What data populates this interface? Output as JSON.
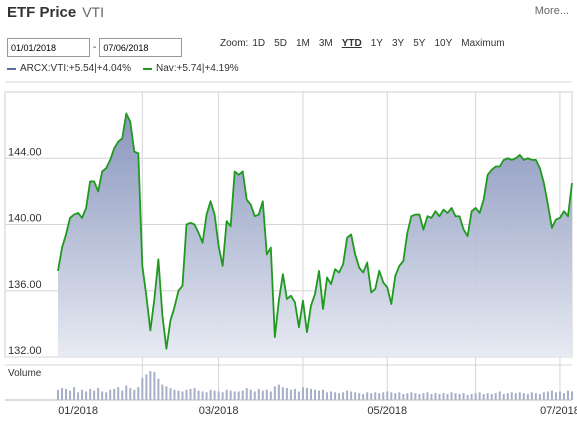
{
  "header": {
    "title": "ETF Price",
    "ticker": "VTI",
    "more_label": "More..."
  },
  "date_range": {
    "from": "01/01/2018",
    "to": "07/06/2018"
  },
  "zoom": {
    "label": "Zoom:",
    "options": [
      "1D",
      "5D",
      "1M",
      "3M",
      "YTD",
      "1Y",
      "3Y",
      "5Y",
      "10Y",
      "Maximum"
    ],
    "active": "YTD"
  },
  "legend": [
    {
      "name": "ARCX:VTI",
      "change": "+5.54",
      "pct": "+4.04%",
      "color": "#5a6fa0"
    },
    {
      "name": "Nav",
      "change": "+5.74",
      "pct": "+4.19%",
      "color": "#1f9a1f"
    }
  ],
  "chart_data": {
    "type": "area",
    "xlabel": "",
    "ylabel": "",
    "ylim": [
      132,
      148
    ],
    "yticks": [
      "132.00",
      "136.00",
      "140.00",
      "144.00"
    ],
    "xticks": [
      "01/2018",
      "03/2018",
      "05/2018",
      "07/2018"
    ],
    "volume_label": "Volume",
    "series": [
      {
        "name": "Nav",
        "x": [
          "2018-01-02",
          "2018-01-03",
          "2018-01-04",
          "2018-01-05",
          "2018-01-08",
          "2018-01-09",
          "2018-01-10",
          "2018-01-11",
          "2018-01-12",
          "2018-01-16",
          "2018-01-17",
          "2018-01-18",
          "2018-01-19",
          "2018-01-22",
          "2018-01-23",
          "2018-01-24",
          "2018-01-25",
          "2018-01-26",
          "2018-01-29",
          "2018-01-30",
          "2018-01-31",
          "2018-02-01",
          "2018-02-02",
          "2018-02-05",
          "2018-02-06",
          "2018-02-07",
          "2018-02-08",
          "2018-02-09",
          "2018-02-12",
          "2018-02-13",
          "2018-02-14",
          "2018-02-15",
          "2018-02-16",
          "2018-02-20",
          "2018-02-21",
          "2018-02-22",
          "2018-02-23",
          "2018-02-26",
          "2018-02-27",
          "2018-02-28",
          "2018-03-01",
          "2018-03-02",
          "2018-03-05",
          "2018-03-06",
          "2018-03-07",
          "2018-03-08",
          "2018-03-09",
          "2018-03-12",
          "2018-03-13",
          "2018-03-14",
          "2018-03-15",
          "2018-03-16",
          "2018-03-19",
          "2018-03-20",
          "2018-03-21",
          "2018-03-22",
          "2018-03-23",
          "2018-03-26",
          "2018-03-27",
          "2018-03-28",
          "2018-03-29",
          "2018-04-02",
          "2018-04-03",
          "2018-04-04",
          "2018-04-05",
          "2018-04-06",
          "2018-04-09",
          "2018-04-10",
          "2018-04-11",
          "2018-04-12",
          "2018-04-13",
          "2018-04-16",
          "2018-04-17",
          "2018-04-18",
          "2018-04-19",
          "2018-04-20",
          "2018-04-23",
          "2018-04-24",
          "2018-04-25",
          "2018-04-26",
          "2018-04-27",
          "2018-04-30",
          "2018-05-01",
          "2018-05-02",
          "2018-05-03",
          "2018-05-04",
          "2018-05-07",
          "2018-05-08",
          "2018-05-09",
          "2018-05-10",
          "2018-05-11",
          "2018-05-14",
          "2018-05-15",
          "2018-05-16",
          "2018-05-17",
          "2018-05-18",
          "2018-05-21",
          "2018-05-22",
          "2018-05-23",
          "2018-05-24",
          "2018-05-25",
          "2018-05-29",
          "2018-05-30",
          "2018-05-31",
          "2018-06-01",
          "2018-06-04",
          "2018-06-05",
          "2018-06-06",
          "2018-06-07",
          "2018-06-08",
          "2018-06-11",
          "2018-06-12",
          "2018-06-13",
          "2018-06-14",
          "2018-06-15",
          "2018-06-18",
          "2018-06-19",
          "2018-06-20",
          "2018-06-21",
          "2018-06-22",
          "2018-06-25",
          "2018-06-26",
          "2018-06-27",
          "2018-06-28",
          "2018-06-29",
          "2018-07-02",
          "2018-07-03",
          "2018-07-05",
          "2018-07-06"
        ],
        "values": [
          137.2,
          138.6,
          139.4,
          140.4,
          140.6,
          140.7,
          140.4,
          141.0,
          142.6,
          142.6,
          142.0,
          143.2,
          143.4,
          143.9,
          144.6,
          145.0,
          145.2,
          146.7,
          146.2,
          144.4,
          144.3,
          137.5,
          135.7,
          133.6,
          135.5,
          137.9,
          134.5,
          132.5,
          134.2,
          135.0,
          136.0,
          136.3,
          140.0,
          140.1,
          140.0,
          139.5,
          138.9,
          140.6,
          141.4,
          140.6,
          138.7,
          137.5,
          140.2,
          139.9,
          143.2,
          143.0,
          143.2,
          141.5,
          141.2,
          140.5,
          140.6,
          141.4,
          138.2,
          138.6,
          133.2,
          135.4,
          137.0,
          135.5,
          135.7,
          135.3,
          133.8,
          135.4,
          133.5,
          135.1,
          135.8,
          137.2,
          134.9,
          136.8,
          136.4,
          137.3,
          137.1,
          137.6,
          139.2,
          139.4,
          138.2,
          137.4,
          137.1,
          137.7,
          135.9,
          136.1,
          137.2,
          136.5,
          136.2,
          135.2,
          136.9,
          137.5,
          137.8,
          139.5,
          140.5,
          140.6,
          140.6,
          139.7,
          140.5,
          140.4,
          140.8,
          140.5,
          140.9,
          140.7,
          141.0,
          140.5,
          140.5,
          139.7,
          139.3,
          140.8,
          141.0,
          140.7,
          141.5,
          143.0,
          143.3,
          143.5,
          143.5,
          143.9,
          144.0,
          143.9,
          144.0,
          144.2,
          143.9,
          144.0,
          143.9,
          143.9,
          143.4,
          142.5,
          141.2,
          139.8,
          140.3,
          140.4,
          140.8,
          140.5,
          142.5
        ]
      }
    ],
    "volume": [
      12,
      14,
      13,
      11,
      15,
      9,
      12,
      10,
      13,
      11,
      14,
      10,
      9,
      12,
      13,
      15,
      11,
      17,
      14,
      12,
      15,
      26,
      30,
      34,
      33,
      25,
      18,
      16,
      14,
      12,
      11,
      10,
      12,
      13,
      14,
      11,
      10,
      9,
      12,
      11,
      10,
      9,
      12,
      11,
      10,
      10,
      11,
      14,
      12,
      10,
      13,
      11,
      12,
      10,
      16,
      18,
      15,
      14,
      12,
      13,
      10,
      15,
      14,
      13,
      12,
      11,
      12,
      9,
      10,
      9,
      8,
      9,
      11,
      10,
      9,
      8,
      7,
      9,
      8,
      9,
      8,
      9,
      10,
      9,
      8,
      9,
      7,
      8,
      9,
      8,
      7,
      8,
      9,
      7,
      8,
      7,
      8,
      7,
      9,
      8,
      7,
      8,
      6,
      7,
      8,
      9,
      7,
      8,
      7,
      8,
      10,
      7,
      8,
      9,
      8,
      9,
      8,
      7,
      9,
      8,
      7,
      9,
      10,
      11,
      9,
      10,
      8,
      11,
      10
    ],
    "colors": {
      "nav": "#1f9a1f",
      "price": "#5a6fa0",
      "volume": "#a6afc8"
    }
  }
}
